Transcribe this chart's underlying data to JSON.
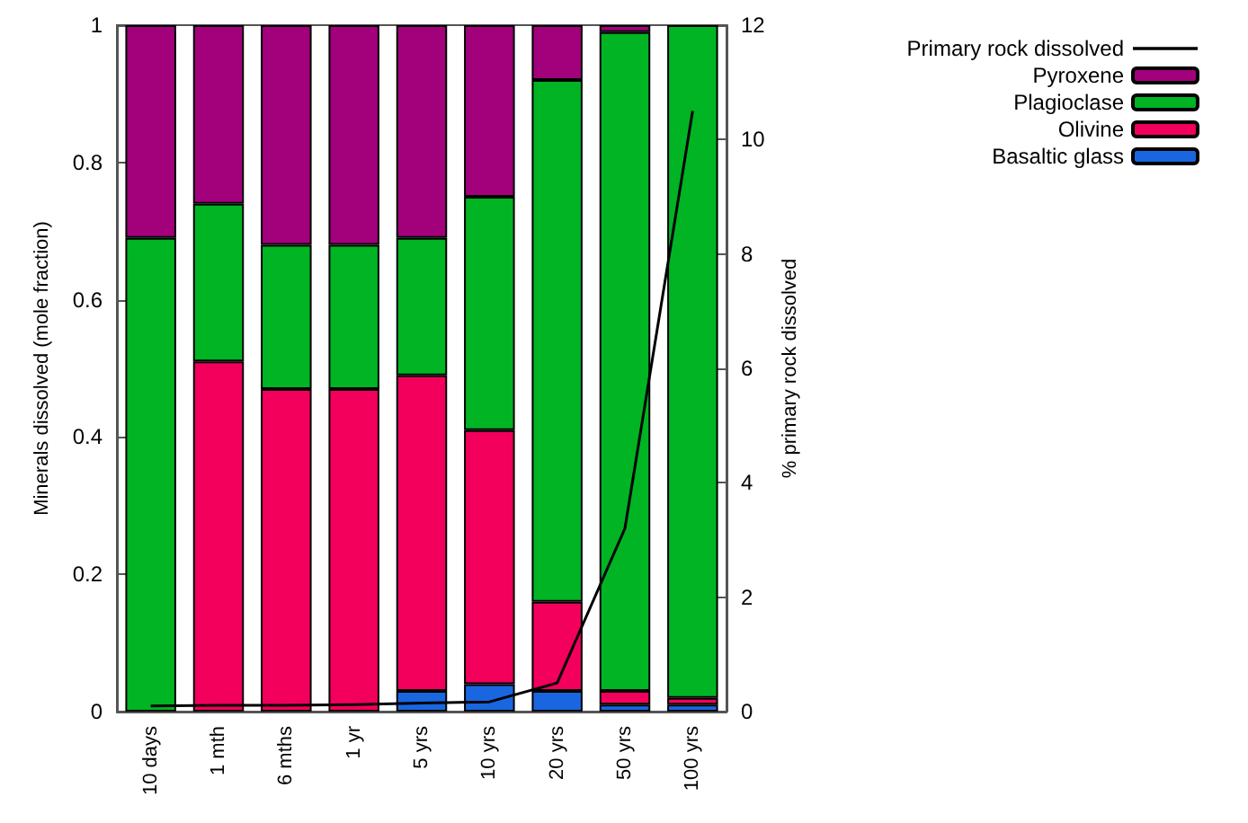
{
  "chart_data": {
    "type": "bar",
    "stacked": true,
    "ylabel": "Minerals dissolved (mole fraction)",
    "y2label": "% primary rock dissolved",
    "categories": [
      "10 days",
      "1 mth",
      "6 mths",
      "1 yr",
      "5 yrs",
      "10 yrs",
      "20 yrs",
      "50 yrs",
      "100 yrs"
    ],
    "series": [
      {
        "name": "Basaltic glass",
        "color": "#1a66e0",
        "values": [
          0,
          0,
          0,
          0,
          0.03,
          0.04,
          0.03,
          0.01,
          0.01
        ]
      },
      {
        "name": "Olivine",
        "color": "#f2005c",
        "values": [
          0,
          0.51,
          0.47,
          0.47,
          0.46,
          0.37,
          0.13,
          0.02,
          0.01
        ]
      },
      {
        "name": "Plagioclase",
        "color": "#00b424",
        "values": [
          0.69,
          0.23,
          0.21,
          0.21,
          0.2,
          0.34,
          0.76,
          0.96,
          0.98
        ]
      },
      {
        "name": "Pyroxene",
        "color": "#a3007c",
        "values": [
          0.31,
          0.26,
          0.32,
          0.32,
          0.31,
          0.25,
          0.08,
          0.01,
          0
        ]
      },
      {
        "name": "Primary rock dissolved",
        "type": "line",
        "axis": "y2",
        "color": "#000000",
        "values": [
          0.1,
          0.11,
          0.11,
          0.12,
          0.15,
          0.17,
          0.5,
          3.2,
          10.5
        ]
      }
    ],
    "ylim": [
      0,
      1
    ],
    "yticks": [
      0,
      0.2,
      0.4,
      0.6,
      0.8,
      1
    ],
    "y2lim": [
      0,
      12
    ],
    "y2ticks": [
      0,
      2,
      4,
      6,
      8,
      10,
      12
    ],
    "grid": false,
    "legend": "top right",
    "marker": "none",
    "line_style": "solid"
  }
}
